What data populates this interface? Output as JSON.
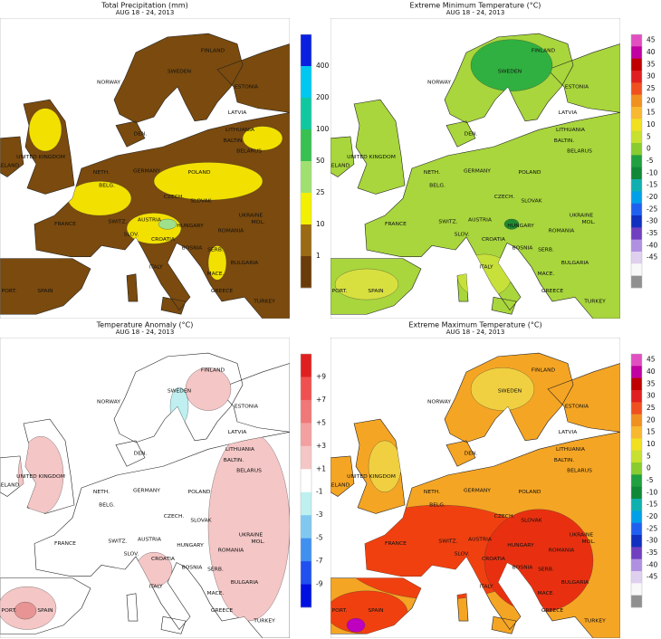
{
  "panels": [
    {
      "title": "Total Precipitation (mm)",
      "subtitle": "AUG 18 - 24, 2013",
      "legend_labels": [
        "400",
        "200",
        "100",
        "50",
        "25",
        "10",
        "1"
      ]
    },
    {
      "title": "Extreme Minimum Temperature (°C)",
      "subtitle": "AUG 18 - 24, 2013",
      "legend_labels": [
        "45",
        "40",
        "35",
        "30",
        "25",
        "20",
        "15",
        "10",
        "5",
        "0",
        "-5",
        "-10",
        "-15",
        "-20",
        "-25",
        "-30",
        "-35",
        "-40",
        "-45"
      ]
    },
    {
      "title": "Temperature Anomaly (°C)",
      "subtitle": "AUG 18 - 24, 2013",
      "legend_labels": [
        "+9",
        "+7",
        "+5",
        "+3",
        "+1",
        "-1",
        "-3",
        "-5",
        "-7",
        "-9"
      ]
    },
    {
      "title": "Extreme Maximum Temperature (°C)",
      "subtitle": "AUG 18 - 24, 2013",
      "legend_labels": [
        "45",
        "40",
        "35",
        "30",
        "25",
        "20",
        "15",
        "10",
        "5",
        "0",
        "-5",
        "-10",
        "-15",
        "-20",
        "-25",
        "-30",
        "-35",
        "-40",
        "-45"
      ]
    }
  ],
  "country_labels": [
    "FINLAND",
    "NORWAY",
    "SWEDEN",
    "ESTONIA",
    "LATVIA",
    "LITHUANIA",
    "BALTIN.",
    "DEN.",
    "UNITED KINGDOM",
    "IRELAND",
    "NETH.",
    "BELG.",
    "GERMANY",
    "POLAND",
    "BELARUS",
    "CZECH.",
    "SLOVAK",
    "UKRAINE",
    "FRANCE",
    "SWITZ.",
    "AUSTRIA",
    "HUNGARY",
    "MOL.",
    "ROMANIA",
    "SLOV.",
    "CROATIA",
    "ITALY",
    "BOSNIA",
    "SERB.",
    "BULGARIA",
    "MACE.",
    "GREECE",
    "TURKEY",
    "PORT.",
    "SPAIN"
  ]
}
